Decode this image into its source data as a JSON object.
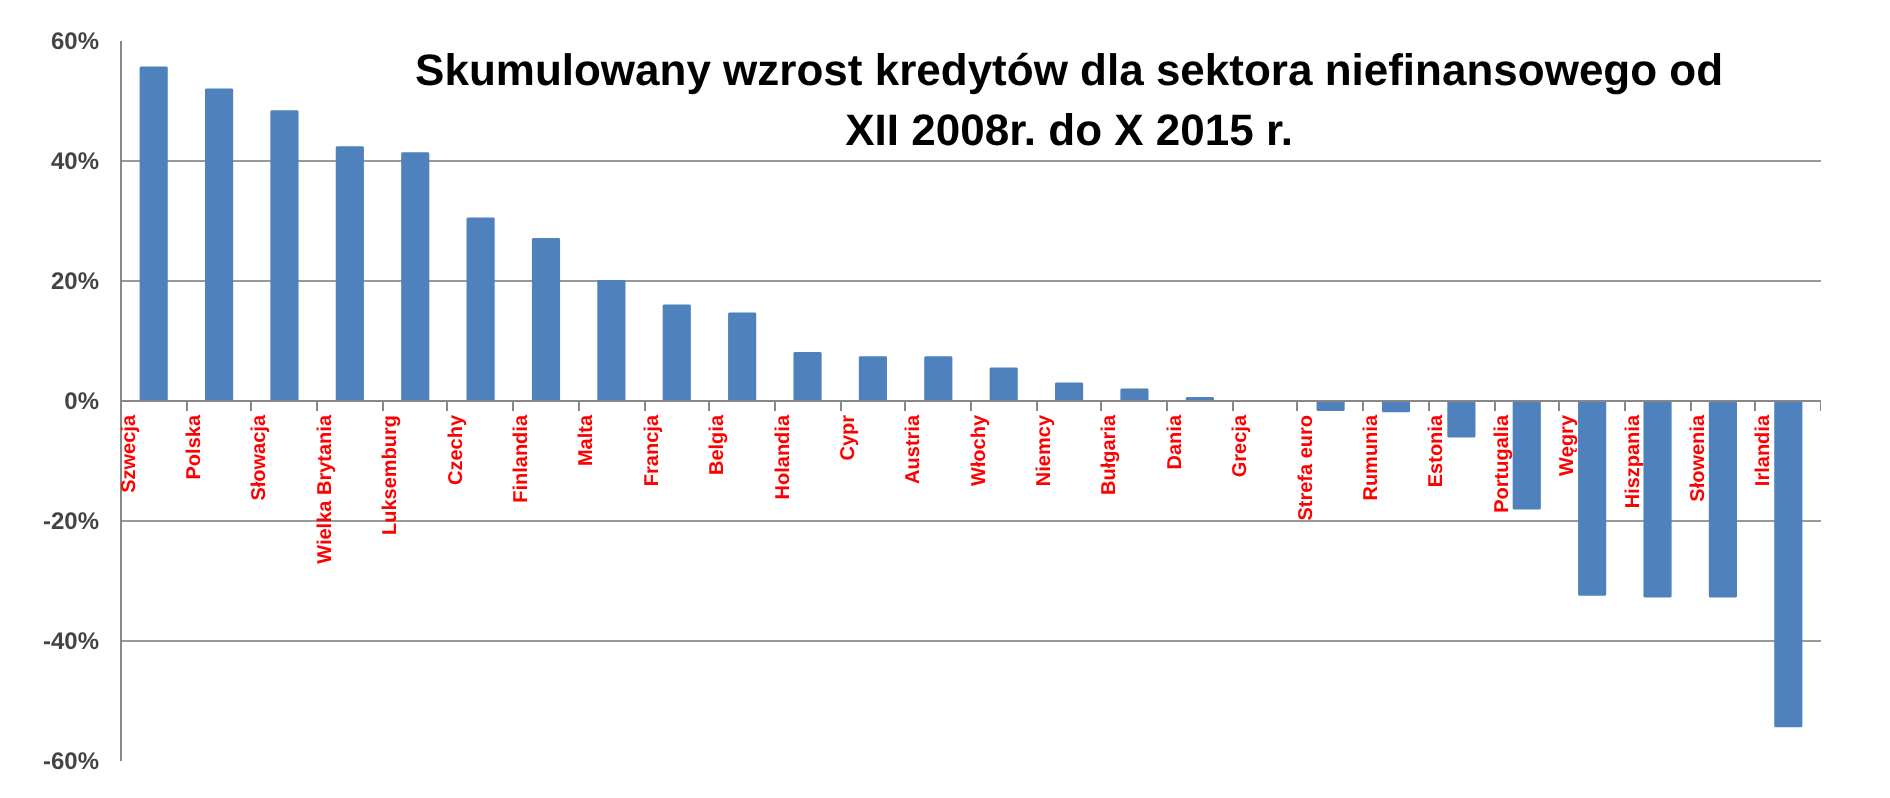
{
  "chart_data": {
    "type": "bar",
    "title": "Skumulowany wzrost kredytów dla sektora niefinansowego od\nXII 2008r. do X 2015 r.",
    "categories": [
      "Szwecja",
      "Polska",
      "Słowacja",
      "Wielka Brytania",
      "Luksemburg",
      "Czechy",
      "Finlandia",
      "Malta",
      "Francja",
      "Belgia",
      "Holandia",
      "Cypr",
      "Austria",
      "Włochy",
      "Niemcy",
      "Bułgaria",
      "Dania",
      "Grecja",
      "Strefa euro",
      "Rumunia",
      "Estonia",
      "Portugalia",
      "Węgry",
      "Hiszpania",
      "Słowenia",
      "Irlandia"
    ],
    "values": [
      55.6,
      51.9,
      48.3,
      42.3,
      41.3,
      30.4,
      27,
      20,
      15.9,
      14.6,
      8,
      7.3,
      7.3,
      5.4,
      2.9,
      1.9,
      0.5,
      0,
      -1.5,
      -1.7,
      -5.9,
      -17.9,
      -32.3,
      -32.6,
      -32.6,
      -54.2
    ],
    "color": "#4f81bd",
    "ylim": [
      -60,
      60
    ],
    "yticks": [
      {
        "value": -60,
        "label": "-60%"
      },
      {
        "value": -40,
        "label": "-40%"
      },
      {
        "value": -20,
        "label": "-20%"
      },
      {
        "value": 0,
        "label": "0%"
      },
      {
        "value": 20,
        "label": "20%"
      },
      {
        "value": 40,
        "label": "40%"
      },
      {
        "value": 60,
        "label": "60%"
      }
    ],
    "grid": "y"
  }
}
